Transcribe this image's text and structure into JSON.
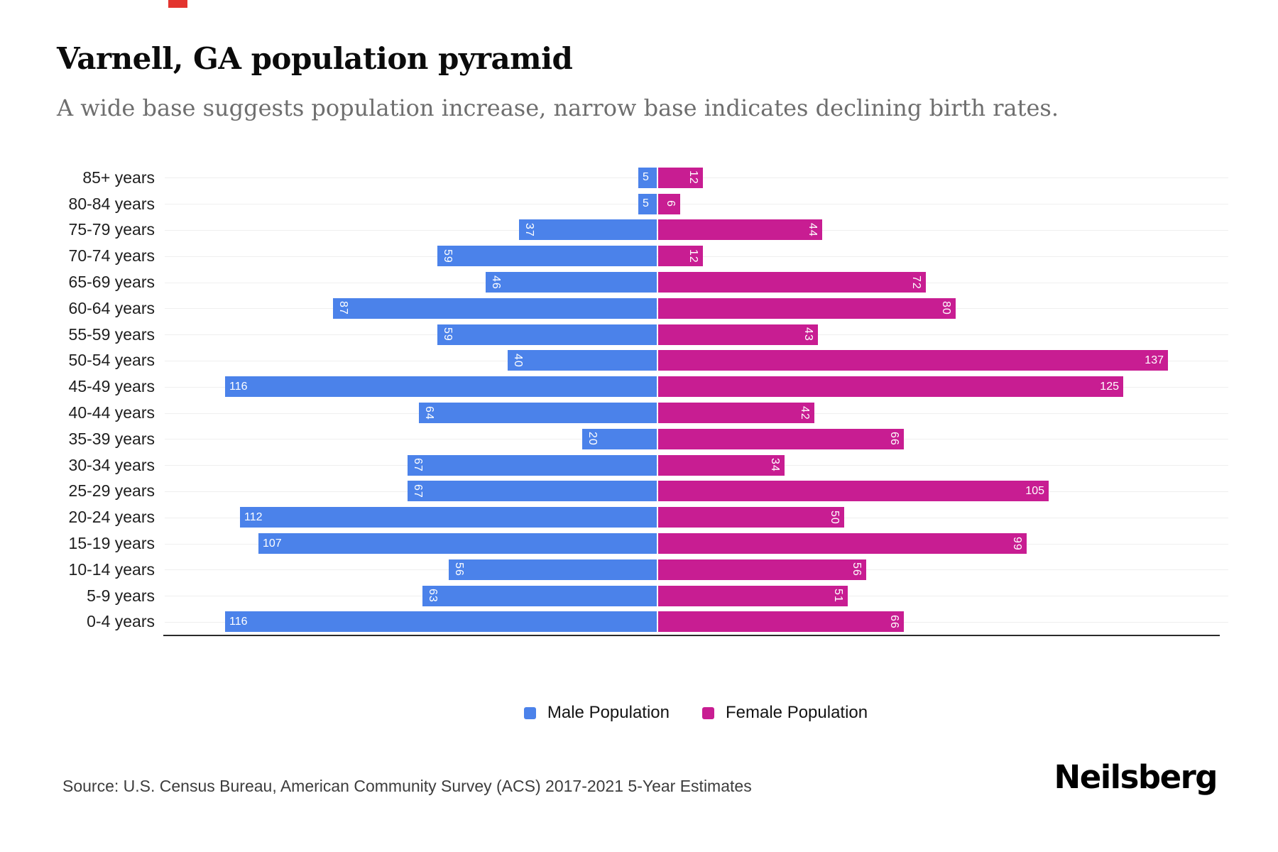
{
  "header": {
    "title": "Varnell, GA population pyramid",
    "subtitle": "A wide base suggests population increase, narrow base indicates declining birth rates."
  },
  "chart_data": {
    "type": "bar",
    "variant": "population-pyramid",
    "title": "Varnell, GA population pyramid",
    "categories": [
      "85+ years",
      "80-84 years",
      "75-79 years",
      "70-74 years",
      "65-69 years",
      "60-64 years",
      "55-59 years",
      "50-54 years",
      "45-49 years",
      "40-44 years",
      "35-39 years",
      "30-34 years",
      "25-29 years",
      "20-24 years",
      "15-19 years",
      "10-14 years",
      "5-9 years",
      "0-4 years"
    ],
    "series": [
      {
        "name": "Male Population",
        "side": "left",
        "color": "#4b82ea",
        "values": [
          5,
          5,
          37,
          59,
          46,
          87,
          59,
          40,
          116,
          64,
          20,
          67,
          67,
          112,
          107,
          56,
          63,
          116
        ]
      },
      {
        "name": "Female Population",
        "side": "right",
        "color": "#c81d92",
        "values": [
          12,
          6,
          44,
          12,
          72,
          80,
          43,
          137,
          125,
          42,
          66,
          34,
          105,
          50,
          99,
          56,
          51,
          66
        ]
      }
    ],
    "axis": {
      "left_max_estimate": 132,
      "right_max_estimate": 152
    },
    "grid": true,
    "value_labels": "inside bar end, white",
    "legend_position": "bottom-center"
  },
  "footer": {
    "source": "Source: U.S. Census Bureau, American Community Survey (ACS) 2017-2021 5-Year Estimates",
    "brand": "Neilsberg"
  },
  "decorations": {
    "top_left_mark_color": "#e3342f",
    "gridline_color": "#efefef",
    "axis_line_color": "#2a2a2a"
  }
}
